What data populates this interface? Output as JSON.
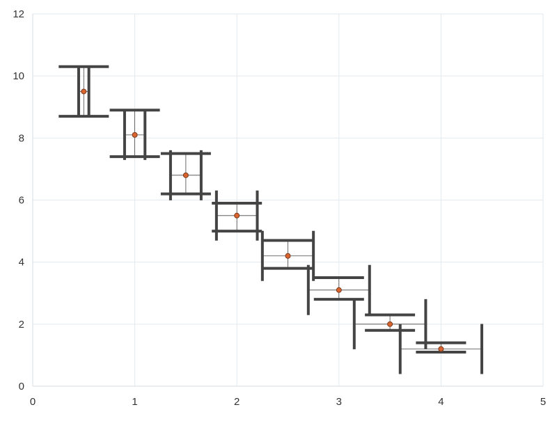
{
  "chart_data": {
    "type": "scatter",
    "title": "",
    "xlabel": "",
    "ylabel": "",
    "xlim": [
      0,
      5
    ],
    "ylim": [
      0,
      12
    ],
    "x_ticks": [
      "0",
      "1",
      "2",
      "3",
      "4",
      "5"
    ],
    "y_ticks": [
      "0",
      "2",
      "4",
      "6",
      "8",
      "10",
      "12"
    ],
    "grid": true,
    "legend": "none",
    "colors": {
      "point_fill": "#d9642e",
      "point_stroke": "#7a3a1e",
      "error_bar": "#444444",
      "gridline": "#e3e9ee",
      "axis": "#d6dde3"
    },
    "series": [
      {
        "points": [
          {
            "x": 0.5,
            "y": 9.5,
            "x_err": [
              0.05,
              0.05
            ],
            "y_err": [
              0.8,
              0.8
            ]
          },
          {
            "x": 1.0,
            "y": 8.1,
            "x_err": [
              0.1,
              0.1
            ],
            "y_err": [
              0.7,
              0.8
            ]
          },
          {
            "x": 1.5,
            "y": 6.8,
            "x_err": [
              0.15,
              0.15
            ],
            "y_err": [
              0.6,
              0.7
            ]
          },
          {
            "x": 2.0,
            "y": 5.5,
            "x_err": [
              0.2,
              0.2
            ],
            "y_err": [
              0.5,
              0.4
            ]
          },
          {
            "x": 2.5,
            "y": 4.2,
            "x_err": [
              0.25,
              0.25
            ],
            "y_err": [
              0.4,
              0.5
            ]
          },
          {
            "x": 3.0,
            "y": 3.1,
            "x_err": [
              0.3,
              0.3
            ],
            "y_err": [
              0.3,
              0.4
            ]
          },
          {
            "x": 3.5,
            "y": 2.0,
            "x_err": [
              0.35,
              0.35
            ],
            "y_err": [
              0.2,
              0.3
            ]
          },
          {
            "x": 4.0,
            "y": 1.2,
            "x_err": [
              0.4,
              0.4
            ],
            "y_err": [
              0.1,
              0.2
            ]
          }
        ]
      }
    ]
  }
}
